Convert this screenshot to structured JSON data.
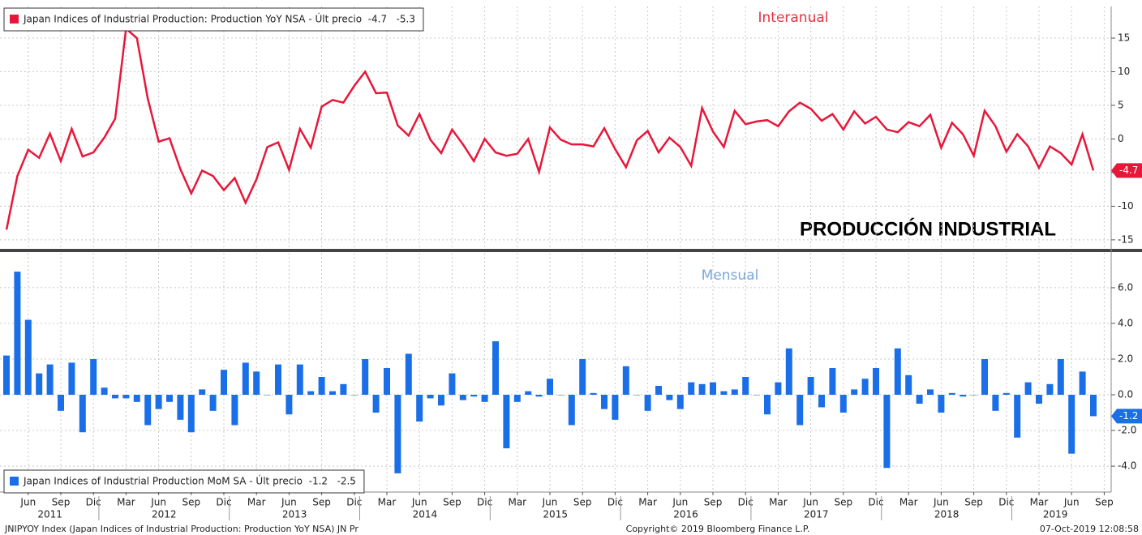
{
  "chart_data": [
    {
      "type": "line",
      "title": "Interanual",
      "annotation": "PRODUCCIÓN INDUSTRIAL",
      "series": [
        {
          "name": "Japan Indices of Industrial Production: Production YoY NSA - Últ precio  -4.7   -5.3",
          "color": "#e8173a",
          "values": [
            -13.5,
            -5.5,
            -1.6,
            -2.8,
            0.8,
            -3.3,
            1.5,
            -2.6,
            -2.0,
            0.2,
            3.0,
            16.4,
            15.0,
            6.0,
            -0.4,
            0.1,
            -4.5,
            -8.1,
            -4.7,
            -5.5,
            -7.6,
            -5.8,
            -9.5,
            -6.0,
            -1.2,
            -0.5,
            -4.6,
            1.5,
            -1.3,
            4.8,
            5.8,
            5.4,
            7.9,
            10.0,
            6.8,
            6.9,
            2.0,
            0.5,
            3.7,
            -0.1,
            -2.1,
            1.4,
            -0.8,
            -3.3,
            0.0,
            -2.0,
            -2.5,
            -2.2,
            0.0,
            -4.9,
            1.7,
            -0.1,
            -0.8,
            -0.8,
            -1.1,
            1.6,
            -1.5,
            -4.2,
            -0.2,
            1.2,
            -2.0,
            0.2,
            -1.2,
            -4.0,
            4.6,
            1.1,
            -1.2,
            4.2,
            2.2,
            2.6,
            2.8,
            1.9,
            4.1,
            5.4,
            4.5,
            2.7,
            3.7,
            1.4,
            4.1,
            2.3,
            3.3,
            1.4,
            1.0,
            2.5,
            1.9,
            3.6,
            -1.3,
            2.4,
            0.7,
            -2.5,
            4.2,
            1.9,
            -1.9,
            0.7,
            -1.1,
            -4.3,
            -1.1,
            -2.1,
            -3.8,
            0.7,
            -4.7
          ]
        }
      ],
      "x": [
        "2011-04",
        "2011-05",
        "2011-06",
        "2011-07",
        "2011-08",
        "2011-09",
        "2011-10",
        "2011-11",
        "2011-12",
        "2012-01",
        "2012-02",
        "2012-03",
        "2012-04",
        "2012-05",
        "2012-06",
        "2012-07",
        "2012-08",
        "2012-09",
        "2012-10",
        "2012-11",
        "2012-12",
        "2013-01",
        "2013-02",
        "2013-03",
        "2013-04",
        "2013-05",
        "2013-06",
        "2013-07",
        "2013-08",
        "2013-09",
        "2013-10",
        "2013-11",
        "2013-12",
        "2014-01",
        "2014-02",
        "2014-03",
        "2014-04",
        "2014-05",
        "2014-06",
        "2014-07",
        "2014-08",
        "2014-09",
        "2014-10",
        "2014-11",
        "2014-12",
        "2015-01",
        "2015-02",
        "2015-03",
        "2015-04",
        "2015-05",
        "2015-06",
        "2015-07",
        "2015-08",
        "2015-09",
        "2015-10",
        "2015-11",
        "2015-12",
        "2016-01",
        "2016-02",
        "2016-03",
        "2016-04",
        "2016-05",
        "2016-06",
        "2016-07",
        "2016-08",
        "2016-09",
        "2016-10",
        "2016-11",
        "2016-12",
        "2017-01",
        "2017-02",
        "2017-03",
        "2017-04",
        "2017-05",
        "2017-06",
        "2017-07",
        "2017-08",
        "2017-09",
        "2017-10",
        "2017-11",
        "2017-12",
        "2018-01",
        "2018-02",
        "2018-03",
        "2018-04",
        "2018-05",
        "2018-06",
        "2018-07",
        "2018-08",
        "2018-09",
        "2018-10",
        "2018-11",
        "2018-12",
        "2019-01",
        "2019-02",
        "2019-03",
        "2019-04",
        "2019-05",
        "2019-06",
        "2019-07",
        "2019-08"
      ],
      "ylim": [
        -16.1,
        19.7
      ],
      "yticks": [
        -15,
        -10,
        -5,
        0,
        5,
        10,
        15
      ],
      "grid": true
    },
    {
      "type": "bar",
      "title": "Mensual",
      "series": [
        {
          "name": "Japan Indices of Industrial Production MoM SA - Últ precio  -1.2   -2.5",
          "color": "#1a6fe8",
          "values": [
            2.2,
            6.9,
            4.2,
            1.2,
            1.7,
            -0.9,
            1.8,
            -2.1,
            2.0,
            0.4,
            -0.2,
            -0.2,
            -0.4,
            -1.7,
            -0.8,
            -0.4,
            -1.4,
            -2.1,
            0.3,
            -0.9,
            1.4,
            -1.7,
            1.8,
            1.3,
            0.0,
            1.7,
            -1.1,
            1.7,
            0.2,
            1.0,
            0.2,
            0.6,
            0.0,
            2.0,
            -1.0,
            1.5,
            -4.4,
            2.3,
            -1.5,
            -0.2,
            -0.6,
            1.2,
            -0.3,
            -0.1,
            -0.4,
            3.0,
            -3.0,
            -0.4,
            0.2,
            -0.1,
            0.9,
            0.0,
            -1.7,
            2.0,
            0.1,
            -0.8,
            -1.4,
            1.6,
            0.0,
            -0.9,
            0.5,
            -0.3,
            -0.8,
            0.7,
            0.6,
            0.7,
            0.2,
            0.3,
            1.0,
            0.0,
            -1.1,
            0.7,
            2.6,
            -1.7,
            1.0,
            -0.7,
            1.5,
            -1.0,
            0.3,
            0.9,
            1.5,
            -4.1,
            2.6,
            1.1,
            -0.5,
            0.3,
            -1.0,
            0.1,
            -0.1,
            0.0,
            2.0,
            -0.9,
            0.1,
            -2.4,
            0.7,
            -0.5,
            0.6,
            2.0,
            -3.3,
            1.3,
            -1.2
          ]
        }
      ],
      "x": [
        "2011-04",
        "2011-05",
        "2011-06",
        "2011-07",
        "2011-08",
        "2011-09",
        "2011-10",
        "2011-11",
        "2011-12",
        "2012-01",
        "2012-02",
        "2012-03",
        "2012-04",
        "2012-05",
        "2012-06",
        "2012-07",
        "2012-08",
        "2012-09",
        "2012-10",
        "2012-11",
        "2012-12",
        "2013-01",
        "2013-02",
        "2013-03",
        "2013-04",
        "2013-05",
        "2013-06",
        "2013-07",
        "2013-08",
        "2013-09",
        "2013-10",
        "2013-11",
        "2013-12",
        "2014-01",
        "2014-02",
        "2014-03",
        "2014-04",
        "2014-05",
        "2014-06",
        "2014-07",
        "2014-08",
        "2014-09",
        "2014-10",
        "2014-11",
        "2014-12",
        "2015-01",
        "2015-02",
        "2015-03",
        "2015-04",
        "2015-05",
        "2015-06",
        "2015-07",
        "2015-08",
        "2015-09",
        "2015-10",
        "2015-11",
        "2015-12",
        "2016-01",
        "2016-02",
        "2016-03",
        "2016-04",
        "2016-05",
        "2016-06",
        "2016-07",
        "2016-08",
        "2016-09",
        "2016-10",
        "2016-11",
        "2016-12",
        "2017-01",
        "2017-02",
        "2017-03",
        "2017-04",
        "2017-05",
        "2017-06",
        "2017-07",
        "2017-08",
        "2017-09",
        "2017-10",
        "2017-11",
        "2017-12",
        "2018-01",
        "2018-02",
        "2018-03",
        "2018-04",
        "2018-05",
        "2018-06",
        "2018-07",
        "2018-08",
        "2018-09",
        "2018-10",
        "2018-11",
        "2018-12",
        "2019-01",
        "2019-02",
        "2019-03",
        "2019-04",
        "2019-05",
        "2019-06",
        "2019-07",
        "2019-08"
      ],
      "ylim": [
        -5.45,
        7.95
      ],
      "yticks": [
        {
          "value": -4,
          "label": "-4.0"
        },
        {
          "value": -2,
          "label": "-2.0"
        },
        {
          "value": 0,
          "label": "0.0"
        },
        {
          "value": 2,
          "label": "2.0"
        },
        {
          "value": 4,
          "label": "4.0"
        },
        {
          "value": 6,
          "label": "6.0"
        }
      ],
      "grid": true,
      "xticks": [
        {
          "value": "2011-06",
          "label": "Jun"
        },
        {
          "value": "2011-09",
          "label": "Sep"
        },
        {
          "value": "2011-12",
          "label": "Dic"
        },
        {
          "value": "2012-03",
          "label": "Mar"
        },
        {
          "value": "2012-06",
          "label": "Jun"
        },
        {
          "value": "2012-09",
          "label": "Sep"
        },
        {
          "value": "2012-12",
          "label": "Dic"
        },
        {
          "value": "2013-03",
          "label": "Mar"
        },
        {
          "value": "2013-06",
          "label": "Jun"
        },
        {
          "value": "2013-09",
          "label": "Sep"
        },
        {
          "value": "2013-12",
          "label": "Dic"
        },
        {
          "value": "2014-03",
          "label": "Mar"
        },
        {
          "value": "2014-06",
          "label": "Jun"
        },
        {
          "value": "2014-09",
          "label": "Sep"
        },
        {
          "value": "2014-12",
          "label": "Dic"
        },
        {
          "value": "2015-03",
          "label": "Mar"
        },
        {
          "value": "2015-06",
          "label": "Jun"
        },
        {
          "value": "2015-09",
          "label": "Sep"
        },
        {
          "value": "2015-12",
          "label": "Dic"
        },
        {
          "value": "2016-03",
          "label": "Mar"
        },
        {
          "value": "2016-06",
          "label": "Jun"
        },
        {
          "value": "2016-09",
          "label": "Sep"
        },
        {
          "value": "2016-12",
          "label": "Dic"
        },
        {
          "value": "2017-03",
          "label": "Mar"
        },
        {
          "value": "2017-06",
          "label": "Jun"
        },
        {
          "value": "2017-09",
          "label": "Sep"
        },
        {
          "value": "2017-12",
          "label": "Dic"
        },
        {
          "value": "2018-03",
          "label": "Mar"
        },
        {
          "value": "2018-06",
          "label": "Jun"
        },
        {
          "value": "2018-09",
          "label": "Sep"
        },
        {
          "value": "2018-12",
          "label": "Dic"
        },
        {
          "value": "2019-03",
          "label": "Mar"
        },
        {
          "value": "2019-06",
          "label": "Jun"
        },
        {
          "value": "2019-09",
          "label": "Sep"
        }
      ],
      "years": [
        "2011",
        "2012",
        "2013",
        "2014",
        "2015",
        "2016",
        "2017",
        "2018",
        "2019"
      ],
      "footer": [
        "JNIPYOY Index (Japan Indices of Industrial Production: Production YoY NSA) JN Pr",
        "Copyright© 2019 Bloomberg Finance L.P.",
        "07-Oct-2019 12:08:58"
      ]
    }
  ]
}
